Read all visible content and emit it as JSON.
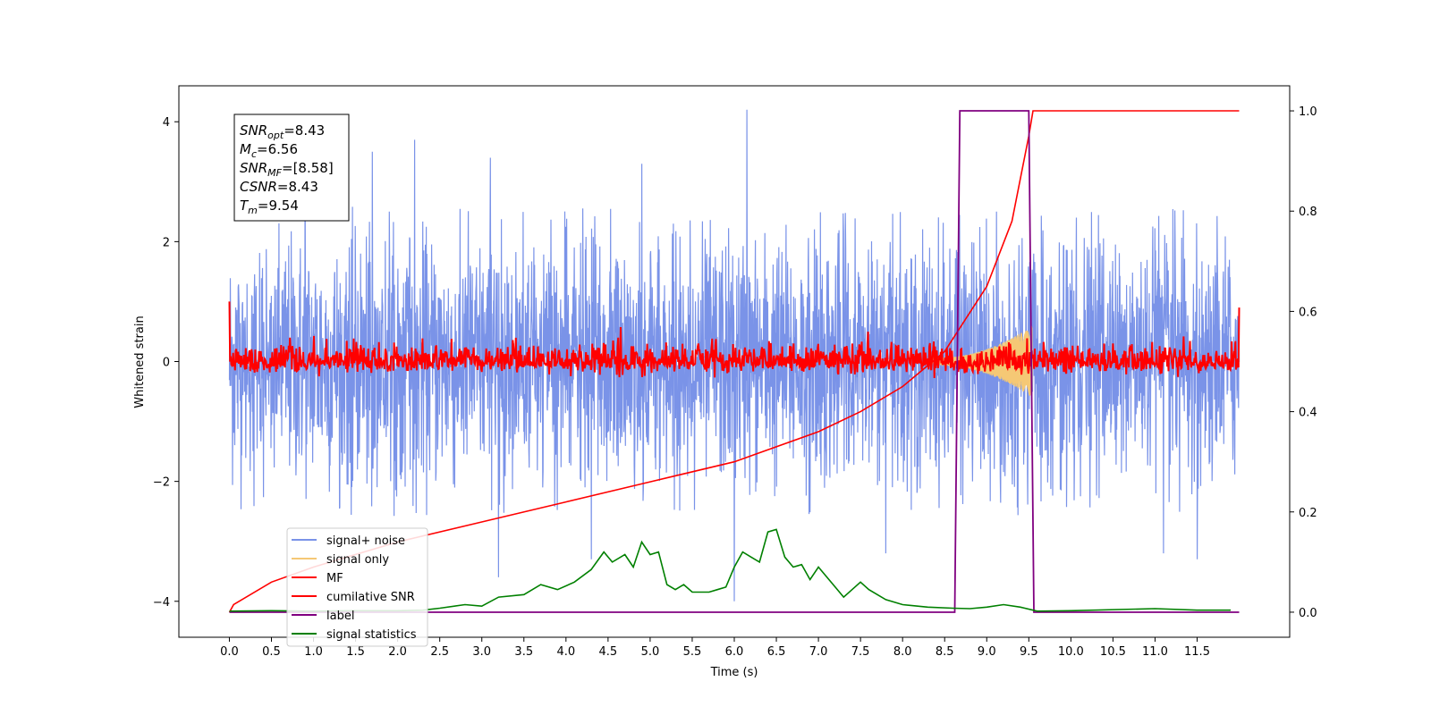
{
  "chart_data": {
    "type": "line",
    "xlabel": "Time (s)",
    "ylabel": "Whitened strain",
    "xlim": [
      -0.6,
      12.6
    ],
    "ylim": [
      -4.6,
      4.6
    ],
    "y2lim": [
      -0.05,
      1.05
    ],
    "x_ticks": [
      0.0,
      0.5,
      1.0,
      1.5,
      2.0,
      2.5,
      3.0,
      3.5,
      4.0,
      4.5,
      5.0,
      5.5,
      6.0,
      6.5,
      7.0,
      7.5,
      8.0,
      8.5,
      9.0,
      9.5,
      10.0,
      10.5,
      11.0,
      11.5
    ],
    "x_tick_labels": [
      "0.0",
      "0.5",
      "1.0",
      "1.5",
      "2.0",
      "2.5",
      "3.0",
      "3.5",
      "4.0",
      "4.5",
      "5.0",
      "5.5",
      "6.0",
      "6.5",
      "7.0",
      "7.5",
      "8.0",
      "8.5",
      "9.0",
      "9.5",
      "10.0",
      "10.5",
      "11.0",
      "11.5"
    ],
    "y_ticks": [
      -4,
      -2,
      0,
      2,
      4
    ],
    "y_tick_labels": [
      "−4",
      "−2",
      "0",
      "2",
      "4"
    ],
    "y2_ticks": [
      0.0,
      0.2,
      0.4,
      0.6,
      0.8,
      1.0
    ],
    "y2_tick_labels": [
      "0.0",
      "0.2",
      "0.4",
      "0.6",
      "0.8",
      "1.0"
    ],
    "legend_placement": "lower-left",
    "annotation": {
      "lines": [
        {
          "base": "SNR",
          "sub": "opt",
          "value": "=8.43"
        },
        {
          "base": "M",
          "sub": "c",
          "value": "=6.56"
        },
        {
          "base": "SNR",
          "sub": "MF",
          "value": "=[8.58]"
        },
        {
          "base": "CSNR",
          "sub": "",
          "value": "=8.43"
        },
        {
          "base": "T",
          "sub": "m",
          "value": "=9.54"
        }
      ]
    },
    "series": [
      {
        "name": "signal+ noise",
        "color": "#7a93e8",
        "axis": "left",
        "x_range": [
          0.0,
          12.0
        ],
        "y_center": 0.0,
        "y_amplitude": 1.0,
        "y_typical_extrema": [
          -2.6,
          2.6
        ],
        "peaks": [
          {
            "x": 0.9,
            "y": 3.4
          },
          {
            "x": 1.7,
            "y": 3.5
          },
          {
            "x": 2.2,
            "y": 3.7
          },
          {
            "x": 3.1,
            "y": 3.4
          },
          {
            "x": 4.9,
            "y": 3.3
          },
          {
            "x": 6.0,
            "y": -4.0
          },
          {
            "x": 6.15,
            "y": 4.2
          },
          {
            "x": 7.8,
            "y": -3.2
          },
          {
            "x": 11.1,
            "y": -3.2
          },
          {
            "x": 11.5,
            "y": -3.3
          },
          {
            "x": 3.2,
            "y": -3.6
          },
          {
            "x": 4.3,
            "y": -3.3
          }
        ]
      },
      {
        "name": "signal only",
        "color": "#f5c875",
        "axis": "left",
        "chirp": {
          "start_x": 8.3,
          "end_x": 9.54,
          "start_amp": 0.05,
          "end_amp": 0.6
        }
      },
      {
        "name": "MF",
        "color": "#ff0000",
        "axis": "left",
        "x_range": [
          0.0,
          12.0
        ],
        "y_center": 0.0,
        "y_amplitude": 0.15,
        "endpoints": [
          {
            "x": 0.0,
            "y": 1.0
          },
          {
            "x": 12.0,
            "y": 0.9
          }
        ]
      },
      {
        "name": "cumilative SNR",
        "color": "#ff0000",
        "axis": "right",
        "x": [
          0.0,
          0.05,
          0.5,
          1.0,
          2.0,
          3.0,
          4.0,
          5.0,
          6.0,
          7.0,
          7.5,
          8.0,
          8.5,
          9.0,
          9.3,
          9.5,
          9.55,
          12.0
        ],
        "y": [
          0.0,
          0.015,
          0.06,
          0.09,
          0.14,
          0.18,
          0.22,
          0.26,
          0.3,
          0.36,
          0.4,
          0.45,
          0.52,
          0.65,
          0.78,
          0.95,
          1.0,
          1.0
        ]
      },
      {
        "name": "label",
        "color": "#800080",
        "axis": "right",
        "x": [
          0.0,
          8.62,
          8.68,
          9.5,
          9.56,
          12.0
        ],
        "y": [
          0.0,
          0.0,
          1.0,
          1.0,
          0.0,
          0.0
        ]
      },
      {
        "name": "signal statistics",
        "color": "#008000",
        "axis": "right",
        "x": [
          0.0,
          0.5,
          1.0,
          1.5,
          2.0,
          2.3,
          2.5,
          2.8,
          3.0,
          3.2,
          3.5,
          3.7,
          3.9,
          4.1,
          4.3,
          4.45,
          4.55,
          4.7,
          4.8,
          4.9,
          5.0,
          5.1,
          5.2,
          5.3,
          5.4,
          5.5,
          5.7,
          5.8,
          5.9,
          6.0,
          6.1,
          6.2,
          6.3,
          6.4,
          6.5,
          6.6,
          6.7,
          6.8,
          6.9,
          7.0,
          7.2,
          7.3,
          7.4,
          7.5,
          7.6,
          7.8,
          8.0,
          8.3,
          8.6,
          8.8,
          9.0,
          9.2,
          9.4,
          9.6,
          10.0,
          11.0,
          11.5,
          11.9
        ],
        "y": [
          0.002,
          0.003,
          0.002,
          0.003,
          0.003,
          0.004,
          0.008,
          0.015,
          0.012,
          0.03,
          0.035,
          0.055,
          0.045,
          0.06,
          0.085,
          0.12,
          0.1,
          0.115,
          0.09,
          0.14,
          0.115,
          0.12,
          0.055,
          0.045,
          0.055,
          0.04,
          0.04,
          0.045,
          0.05,
          0.09,
          0.12,
          0.11,
          0.1,
          0.16,
          0.165,
          0.11,
          0.09,
          0.095,
          0.065,
          0.09,
          0.05,
          0.03,
          0.045,
          0.06,
          0.045,
          0.025,
          0.015,
          0.01,
          0.008,
          0.007,
          0.01,
          0.015,
          0.01,
          0.002,
          0.003,
          0.007,
          0.004,
          0.004
        ]
      }
    ]
  }
}
